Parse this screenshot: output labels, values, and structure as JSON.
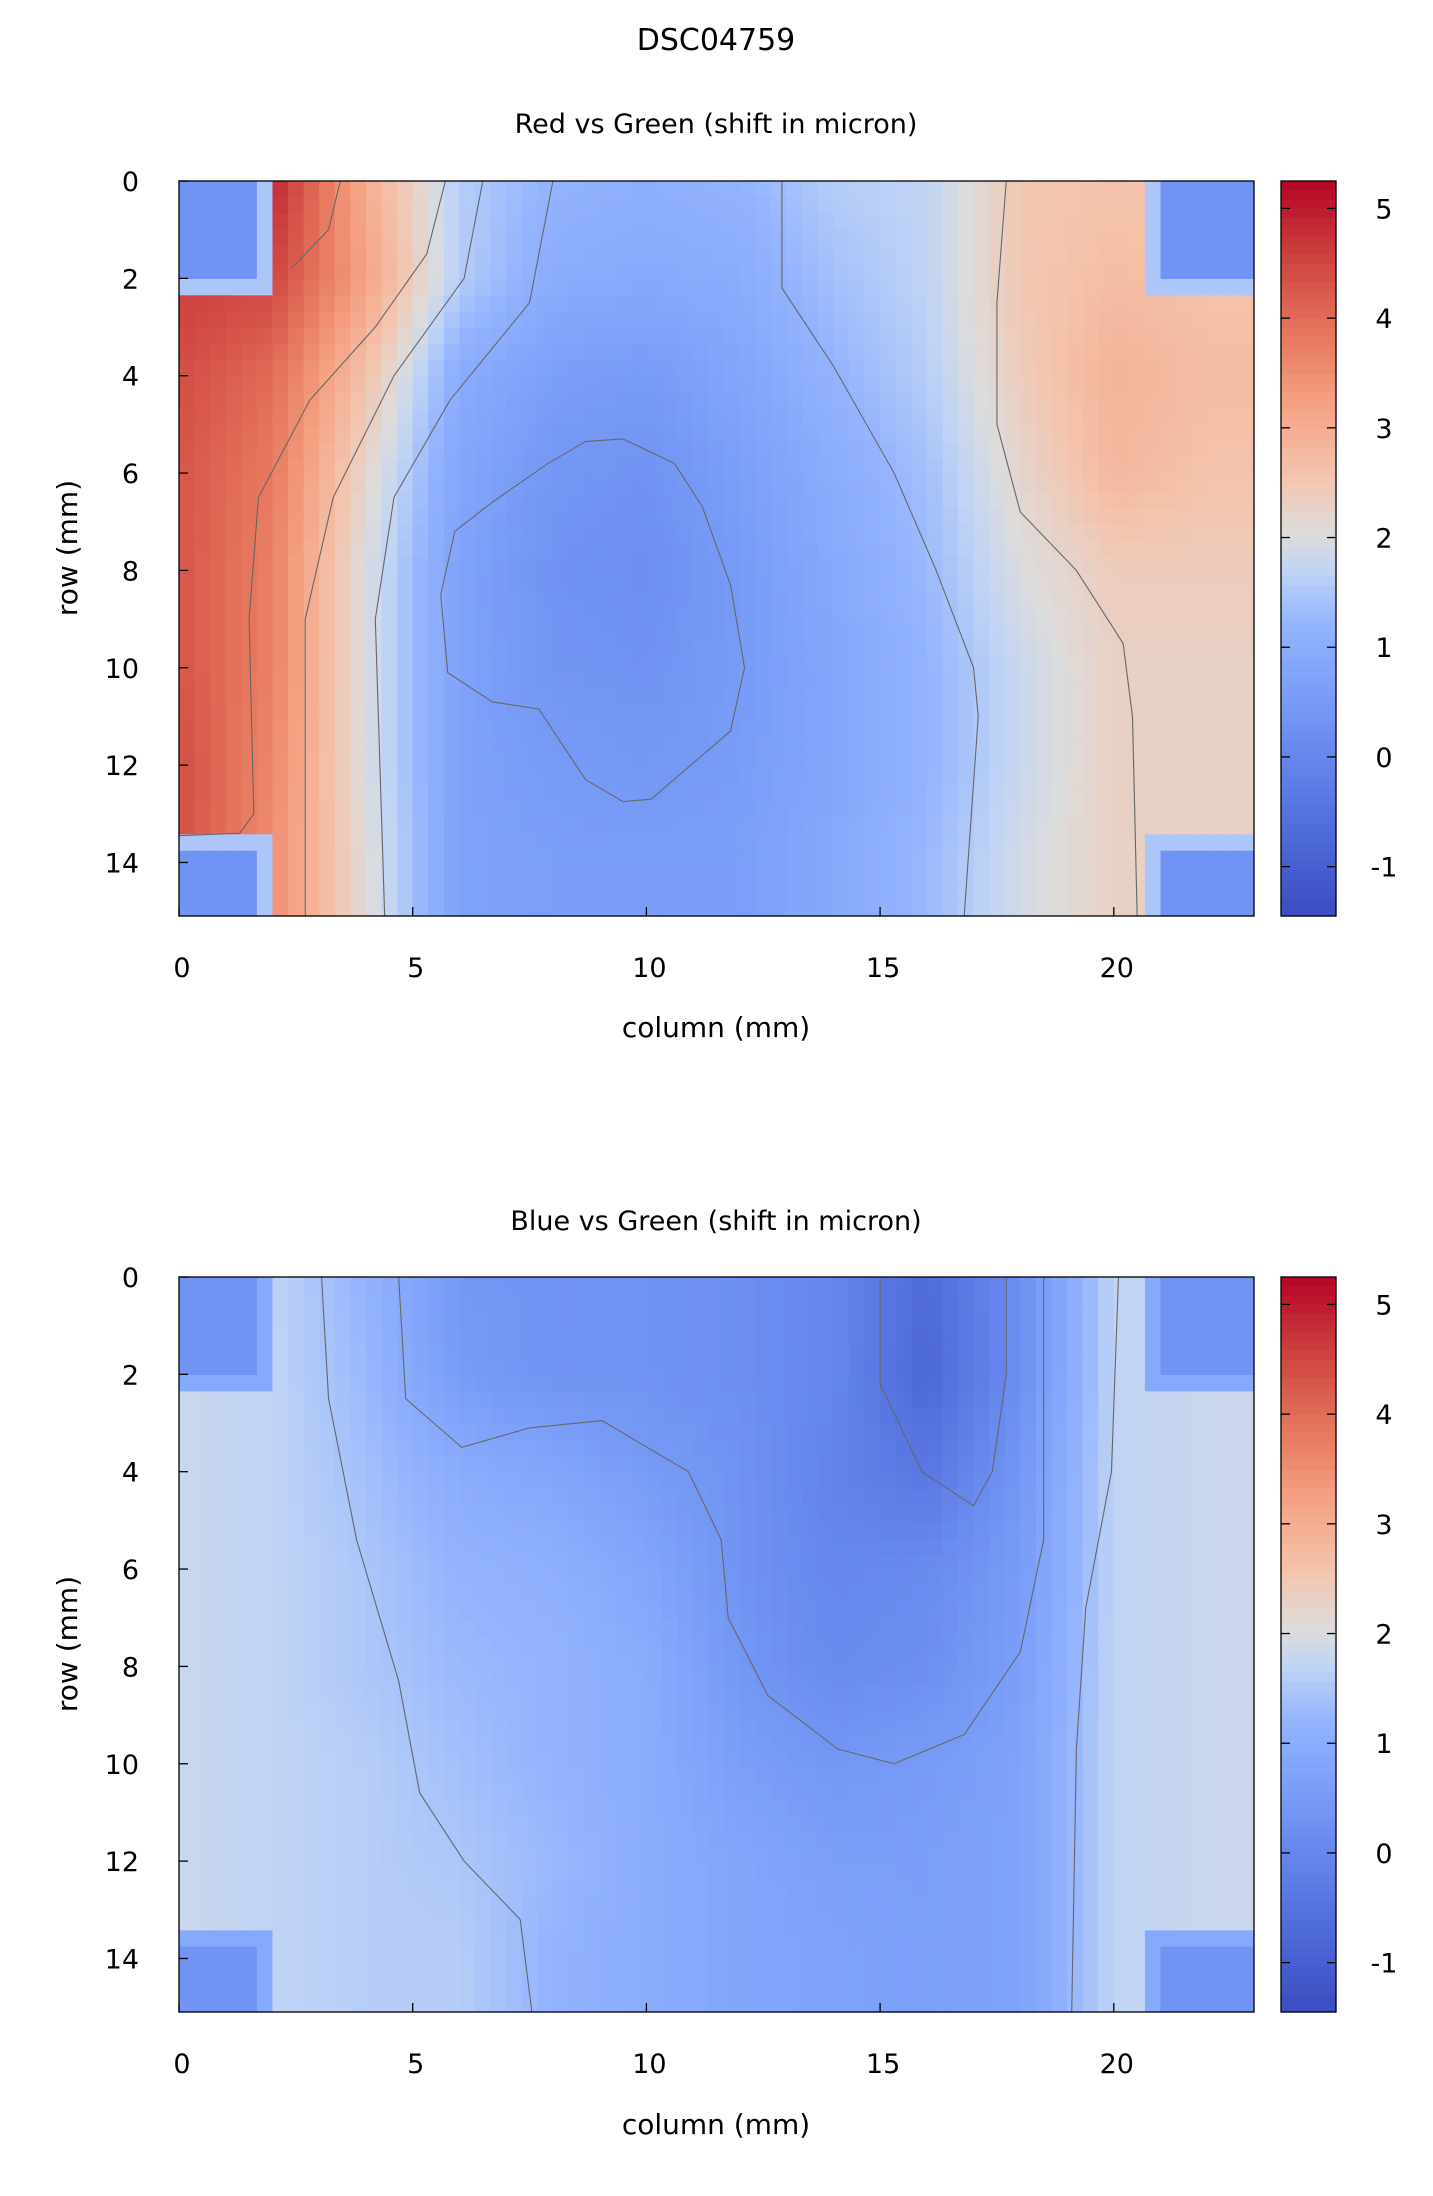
{
  "title": "DSC04759",
  "colormap": {
    "name": "coolwarm",
    "stops": [
      [
        0,
        "#3b4cc0"
      ],
      [
        0.1,
        "#4d68d7"
      ],
      [
        0.2,
        "#6282ea"
      ],
      [
        0.3,
        "#7a9df8"
      ],
      [
        0.4,
        "#94b4fe"
      ],
      [
        0.47,
        "#c0d4f5"
      ],
      [
        0.52,
        "#dddcdc"
      ],
      [
        0.6,
        "#f4c4ad"
      ],
      [
        0.7,
        "#f5a081"
      ],
      [
        0.8,
        "#e5735b"
      ],
      [
        0.9,
        "#cc403e"
      ],
      [
        1,
        "#b40426"
      ]
    ]
  },
  "chart_data": [
    {
      "type": "heatmap",
      "title": "Red vs Green (shift in micron)",
      "xlabel": "column (mm)",
      "ylabel": "row (mm)",
      "xlim": [
        0,
        23
      ],
      "ylim": [
        0,
        15.1
      ],
      "y_inverted": true,
      "xticks": [
        "0",
        "5",
        "10",
        "15",
        "20"
      ],
      "xtick_values": [
        0,
        5,
        10,
        15,
        20
      ],
      "yticks": [
        "0",
        "2",
        "4",
        "6",
        "8",
        "10",
        "12",
        "14"
      ],
      "ytick_values": [
        0,
        2,
        4,
        6,
        8,
        10,
        12,
        14
      ],
      "colorbar": {
        "range": [
          -1.45,
          5.25
        ],
        "ticks": [
          "5",
          "4",
          "3",
          "2",
          "1",
          "0",
          "-1"
        ],
        "tick_values": [
          5,
          4,
          3,
          2,
          1,
          0,
          -1
        ]
      },
      "grid_x": [
        0,
        2,
        4,
        6,
        8,
        10,
        12,
        14,
        16,
        18,
        20,
        22,
        24
      ],
      "grid_y": [
        0,
        2,
        4,
        6,
        8,
        10,
        12,
        14,
        16
      ],
      "values": [
        [
          4.6,
          4.9,
          3.0,
          1.6,
          1.2,
          1.1,
          1.2,
          1.6,
          1.7,
          2.5,
          2.6,
          2.5,
          2.5
        ],
        [
          4.6,
          4.5,
          3.2,
          1.6,
          1.0,
          0.9,
          1.0,
          1.4,
          1.7,
          2.5,
          2.7,
          2.6,
          2.6
        ],
        [
          4.4,
          4.0,
          2.6,
          1.0,
          0.6,
          0.5,
          0.8,
          1.2,
          1.6,
          2.4,
          2.9,
          2.7,
          2.7
        ],
        [
          4.3,
          3.8,
          2.2,
          0.8,
          0.4,
          0.3,
          0.6,
          1.0,
          1.4,
          2.2,
          2.8,
          2.6,
          2.6
        ],
        [
          4.3,
          3.7,
          2.0,
          0.7,
          0.3,
          0.2,
          0.5,
          0.9,
          1.3,
          2.0,
          2.4,
          2.4,
          2.4
        ],
        [
          4.3,
          3.7,
          2.0,
          0.7,
          0.35,
          0.3,
          0.5,
          0.8,
          1.2,
          1.8,
          2.3,
          2.3,
          2.3
        ],
        [
          4.4,
          3.6,
          2.0,
          0.7,
          0.5,
          0.4,
          0.55,
          0.8,
          1.2,
          1.8,
          2.3,
          2.3,
          2.3
        ],
        [
          4.4,
          3.5,
          2.1,
          0.7,
          0.6,
          0.6,
          0.6,
          0.9,
          1.3,
          1.9,
          2.3,
          2.3,
          2.3
        ],
        [
          4.4,
          3.5,
          2.1,
          0.7,
          0.6,
          0.6,
          0.6,
          0.9,
          1.3,
          1.9,
          2.3,
          2.3,
          2.3
        ]
      ],
      "masked_corners": {
        "inner_value": 0.3,
        "edge_value": 1.5,
        "regions": [
          [
            0,
            1.8,
            0,
            1.85
          ],
          [
            21.1,
            23,
            0,
            1.85
          ],
          [
            0,
            1.8,
            13.8,
            15.1
          ],
          [
            21.1,
            23,
            13.8,
            15.1
          ]
        ],
        "edge_regions": [
          [
            0,
            2.1,
            0,
            2.2
          ],
          [
            20.8,
            23,
            0,
            2.2
          ],
          [
            0,
            2.1,
            13.45,
            15.1
          ],
          [
            20.8,
            23,
            13.45,
            15.1
          ]
        ]
      },
      "contours": [
        [
          [
            3.45,
            0
          ],
          [
            3.2,
            1.0
          ],
          [
            2.4,
            1.8
          ]
        ],
        [
          [
            5.7,
            0
          ],
          [
            5.3,
            1.5
          ],
          [
            4.2,
            3.0
          ],
          [
            2.8,
            4.5
          ],
          [
            1.7,
            6.5
          ],
          [
            1.5,
            9
          ],
          [
            1.6,
            13
          ],
          [
            1.3,
            13.4
          ],
          [
            0,
            13.45
          ]
        ],
        [
          [
            6.5,
            0
          ],
          [
            6.1,
            2
          ],
          [
            4.6,
            4
          ],
          [
            3.3,
            6.5
          ],
          [
            2.7,
            9
          ],
          [
            2.7,
            15.1
          ]
        ],
        [
          [
            8.0,
            0
          ],
          [
            7.5,
            2.5
          ],
          [
            5.8,
            4.5
          ],
          [
            4.6,
            6.5
          ],
          [
            4.2,
            9
          ],
          [
            4.4,
            15.1
          ]
        ],
        [
          [
            9.5,
            5.3
          ],
          [
            10.6,
            5.8
          ],
          [
            11.2,
            6.7
          ],
          [
            11.8,
            8.3
          ],
          [
            12.1,
            10
          ],
          [
            11.8,
            11.3
          ],
          [
            10.1,
            12.7
          ],
          [
            9.5,
            12.75
          ],
          [
            8.7,
            12.3
          ],
          [
            7.7,
            10.85
          ],
          [
            6.7,
            10.7
          ],
          [
            5.75,
            10.1
          ],
          [
            5.6,
            8.5
          ],
          [
            5.9,
            7.2
          ],
          [
            6.7,
            6.6
          ],
          [
            7.9,
            5.8
          ],
          [
            8.7,
            5.35
          ],
          [
            9.5,
            5.3
          ]
        ],
        [
          [
            12.9,
            0
          ],
          [
            12.9,
            2.2
          ],
          [
            14,
            3.8
          ],
          [
            15.3,
            6
          ],
          [
            16.2,
            8
          ],
          [
            17,
            10
          ],
          [
            17.1,
            11
          ],
          [
            16.8,
            15.1
          ]
        ],
        [
          [
            17.7,
            0
          ],
          [
            17.5,
            2.5
          ],
          [
            17.5,
            5
          ],
          [
            18,
            6.8
          ],
          [
            19.2,
            8
          ],
          [
            20.2,
            9.5
          ],
          [
            20.4,
            11
          ],
          [
            20.5,
            15.1
          ]
        ]
      ]
    },
    {
      "type": "heatmap",
      "title": "Blue vs Green (shift in micron)",
      "xlabel": "column (mm)",
      "ylabel": "row (mm)",
      "xlim": [
        0,
        23
      ],
      "ylim": [
        0,
        15.1
      ],
      "y_inverted": true,
      "xticks": [
        "0",
        "5",
        "10",
        "15",
        "20"
      ],
      "xtick_values": [
        0,
        5,
        10,
        15,
        20
      ],
      "yticks": [
        "0",
        "2",
        "4",
        "6",
        "8",
        "10",
        "12",
        "14"
      ],
      "ytick_values": [
        0,
        2,
        4,
        6,
        8,
        10,
        12,
        14
      ],
      "colorbar": {
        "range": [
          -1.45,
          5.25
        ],
        "ticks": [
          "5",
          "4",
          "3",
          "2",
          "1",
          "0",
          "-1"
        ],
        "tick_values": [
          5,
          4,
          3,
          2,
          1,
          0,
          -1
        ]
      },
      "grid_x": [
        0,
        2,
        4,
        6,
        8,
        10,
        12,
        14,
        16,
        18,
        20,
        22,
        24
      ],
      "grid_y": [
        0,
        2,
        4,
        6,
        8,
        10,
        12,
        14,
        16
      ],
      "values": [
        [
          1.8,
          1.7,
          1.2,
          0.4,
          0.3,
          0.3,
          0.2,
          0.0,
          -0.7,
          0.2,
          1.7,
          1.8,
          1.8
        ],
        [
          1.8,
          1.7,
          1.3,
          0.5,
          0.3,
          0.3,
          0.2,
          0.0,
          -0.8,
          0.2,
          1.7,
          1.8,
          1.8
        ],
        [
          1.8,
          1.7,
          1.4,
          1.0,
          0.8,
          0.5,
          0.3,
          -0.1,
          -0.4,
          0.4,
          1.7,
          1.8,
          1.8
        ],
        [
          1.8,
          1.7,
          1.5,
          1.2,
          1.1,
          0.8,
          0.3,
          0.0,
          0.1,
          0.5,
          1.7,
          1.8,
          1.8
        ],
        [
          1.8,
          1.7,
          1.5,
          1.3,
          1.2,
          1.0,
          0.4,
          0.1,
          0.2,
          0.6,
          1.7,
          1.8,
          1.8
        ],
        [
          1.8,
          1.7,
          1.6,
          1.4,
          1.2,
          1.0,
          0.6,
          0.4,
          0.5,
          0.7,
          1.7,
          1.8,
          1.8
        ],
        [
          1.8,
          1.7,
          1.6,
          1.5,
          1.3,
          1.0,
          0.8,
          0.6,
          0.6,
          0.7,
          1.7,
          1.8,
          1.8
        ],
        [
          1.8,
          1.7,
          1.6,
          1.6,
          1.2,
          1.0,
          0.8,
          0.7,
          0.6,
          0.7,
          1.7,
          1.8,
          1.8
        ],
        [
          1.8,
          1.7,
          1.6,
          1.6,
          1.2,
          1.0,
          0.8,
          0.7,
          0.6,
          0.7,
          1.7,
          1.8,
          1.8
        ]
      ],
      "masked_corners": {
        "inner_value": 0.3,
        "edge_value": 0.9,
        "regions": [
          [
            0,
            1.8,
            0,
            1.85
          ],
          [
            21.1,
            23,
            0,
            1.85
          ],
          [
            0,
            1.8,
            13.8,
            15.1
          ],
          [
            21.1,
            23,
            13.8,
            15.1
          ]
        ],
        "edge_regions": [
          [
            0,
            2.1,
            0,
            2.2
          ],
          [
            20.8,
            23,
            0,
            2.2
          ],
          [
            0,
            2.1,
            13.45,
            15.1
          ],
          [
            20.8,
            23,
            13.45,
            15.1
          ]
        ]
      },
      "contours": [
        [
          [
            3.05,
            0
          ],
          [
            3.2,
            2.5
          ],
          [
            3.8,
            5.4
          ],
          [
            4.7,
            8.3
          ],
          [
            5.15,
            10.6
          ],
          [
            6.1,
            12
          ],
          [
            7.3,
            13.2
          ],
          [
            7.55,
            15.1
          ]
        ],
        [
          [
            4.7,
            0
          ],
          [
            4.85,
            2.5
          ],
          [
            6.05,
            3.5
          ],
          [
            7.5,
            3.1
          ],
          [
            9.05,
            2.95
          ],
          [
            10.9,
            4
          ],
          [
            11.6,
            5.4
          ],
          [
            11.75,
            7
          ],
          [
            12.6,
            8.6
          ],
          [
            14.1,
            9.7
          ],
          [
            15.3,
            10
          ],
          [
            16.8,
            9.4
          ],
          [
            18.0,
            7.7
          ],
          [
            18.5,
            5.4
          ],
          [
            18.5,
            0
          ]
        ],
        [
          [
            15,
            0
          ],
          [
            15.0,
            2.2
          ],
          [
            15.9,
            4.0
          ],
          [
            17.0,
            4.7
          ],
          [
            17.4,
            4.0
          ],
          [
            17.7,
            2.0
          ],
          [
            17.7,
            0
          ]
        ],
        [
          [
            20.1,
            0
          ],
          [
            19.95,
            4
          ],
          [
            19.4,
            6.8
          ],
          [
            19.2,
            9.7
          ],
          [
            19.1,
            15.1
          ]
        ]
      ]
    }
  ]
}
